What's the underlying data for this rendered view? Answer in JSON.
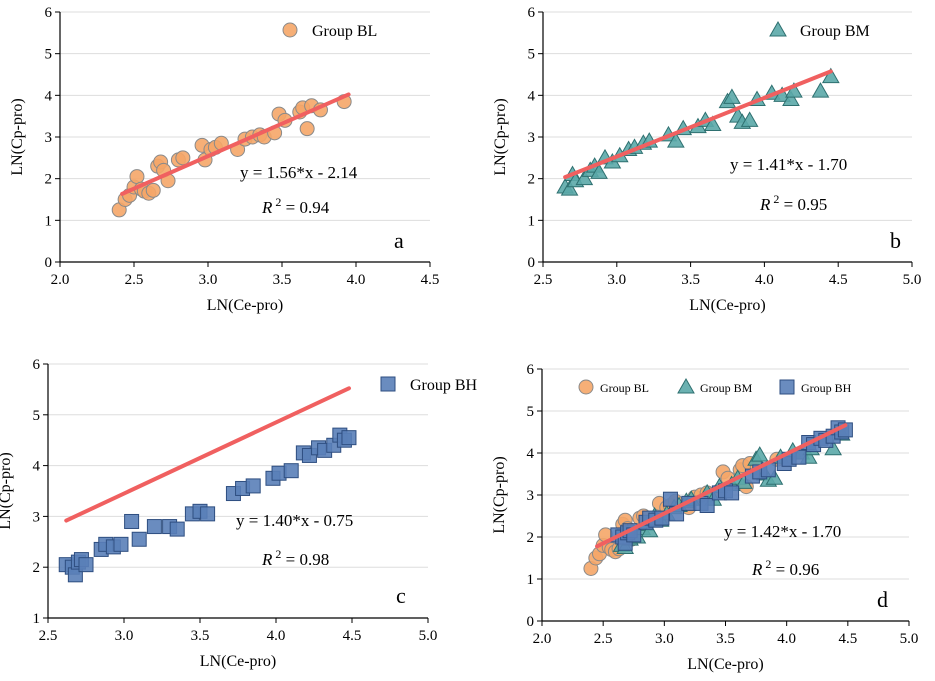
{
  "colors": {
    "bl_fill": "#F5A668",
    "bl_stroke": "#8A8A8A",
    "bm_fill": "#5BA8A8",
    "bm_stroke": "#2E7070",
    "bh_fill": "#5A7FB8",
    "bh_stroke": "#2E4E80",
    "fit_line": "#F06060",
    "grid": "#DDDDDD"
  },
  "chart_data": [
    {
      "id": "a",
      "type": "scatter",
      "panel_letter": "a",
      "xlabel": "LN(Ce-pro)",
      "ylabel": "LN(Cp-pro)",
      "xlim": [
        2.0,
        4.5
      ],
      "ylim": [
        0,
        6
      ],
      "xticks": [
        "2.0",
        "2.5",
        "3.0",
        "3.5",
        "4.0",
        "4.5"
      ],
      "yticks": [
        "0",
        "1",
        "2",
        "3",
        "4",
        "5",
        "6"
      ],
      "equation": "y = 1.56*x - 2.14",
      "r2_label": "R",
      "r2_sup": "2",
      "r2_value": " = 0.94",
      "fit": {
        "slope": 1.56,
        "intercept": -2.14,
        "x_range": [
          2.42,
          3.95
        ]
      },
      "legend": [
        {
          "name": "Group BL",
          "marker": "circle",
          "series": "bl"
        }
      ],
      "series": [
        {
          "name": "Group BL",
          "marker": "circle",
          "color_key": "bl",
          "points": [
            [
              2.4,
              1.25
            ],
            [
              2.44,
              1.5
            ],
            [
              2.47,
              1.6
            ],
            [
              2.5,
              1.8
            ],
            [
              2.52,
              2.05
            ],
            [
              2.55,
              1.75
            ],
            [
              2.57,
              1.7
            ],
            [
              2.6,
              1.65
            ],
            [
              2.63,
              1.72
            ],
            [
              2.66,
              2.3
            ],
            [
              2.68,
              2.4
            ],
            [
              2.7,
              2.2
            ],
            [
              2.73,
              1.95
            ],
            [
              2.8,
              2.45
            ],
            [
              2.83,
              2.5
            ],
            [
              2.96,
              2.8
            ],
            [
              2.98,
              2.45
            ],
            [
              3.02,
              2.7
            ],
            [
              3.05,
              2.75
            ],
            [
              3.09,
              2.85
            ],
            [
              3.2,
              2.7
            ],
            [
              3.25,
              2.95
            ],
            [
              3.3,
              3.0
            ],
            [
              3.35,
              3.05
            ],
            [
              3.38,
              3.0
            ],
            [
              3.45,
              3.1
            ],
            [
              3.48,
              3.55
            ],
            [
              3.52,
              3.4
            ],
            [
              3.62,
              3.6
            ],
            [
              3.64,
              3.7
            ],
            [
              3.67,
              3.2
            ],
            [
              3.7,
              3.75
            ],
            [
              3.76,
              3.65
            ],
            [
              3.92,
              3.85
            ]
          ]
        }
      ]
    },
    {
      "id": "b",
      "type": "scatter",
      "panel_letter": "b",
      "xlabel": "LN(Ce-pro)",
      "ylabel": "LN(Cp-pro)",
      "xlim": [
        2.5,
        5.0
      ],
      "ylim": [
        0,
        6
      ],
      "xticks": [
        "2.5",
        "3.0",
        "3.5",
        "4.0",
        "4.5",
        "5.0"
      ],
      "yticks": [
        "0",
        "1",
        "2",
        "3",
        "4",
        "5",
        "6"
      ],
      "equation": "y = 1.41*x - 1.70",
      "r2_label": "R",
      "r2_sup": "2",
      "r2_value": " = 0.95",
      "fit": {
        "slope": 1.41,
        "intercept": -1.7,
        "x_range": [
          2.65,
          4.45
        ]
      },
      "legend": [
        {
          "name": "Group BM",
          "marker": "triangle",
          "series": "bm"
        }
      ],
      "series": [
        {
          "name": "Group BM",
          "marker": "triangle",
          "color_key": "bm",
          "points": [
            [
              2.65,
              1.8
            ],
            [
              2.68,
              1.75
            ],
            [
              2.7,
              2.1
            ],
            [
              2.72,
              1.95
            ],
            [
              2.78,
              2.0
            ],
            [
              2.82,
              2.2
            ],
            [
              2.85,
              2.3
            ],
            [
              2.88,
              2.15
            ],
            [
              2.92,
              2.5
            ],
            [
              2.97,
              2.4
            ],
            [
              3.02,
              2.55
            ],
            [
              3.08,
              2.7
            ],
            [
              3.12,
              2.75
            ],
            [
              3.18,
              2.85
            ],
            [
              3.22,
              2.9
            ],
            [
              3.35,
              3.05
            ],
            [
              3.4,
              2.9
            ],
            [
              3.45,
              3.2
            ],
            [
              3.55,
              3.25
            ],
            [
              3.6,
              3.4
            ],
            [
              3.65,
              3.3
            ],
            [
              3.75,
              3.85
            ],
            [
              3.78,
              3.95
            ],
            [
              3.82,
              3.5
            ],
            [
              3.85,
              3.35
            ],
            [
              3.9,
              3.4
            ],
            [
              3.95,
              3.9
            ],
            [
              4.05,
              4.05
            ],
            [
              4.12,
              4.0
            ],
            [
              4.18,
              3.9
            ],
            [
              4.2,
              4.1
            ],
            [
              4.38,
              4.1
            ],
            [
              4.45,
              4.45
            ]
          ]
        }
      ]
    },
    {
      "id": "c",
      "type": "scatter",
      "panel_letter": "c",
      "xlabel": "LN(Ce-pro)",
      "ylabel": "LN(Cp-pro)",
      "xlim": [
        2.5,
        5.0
      ],
      "ylim": [
        1,
        6
      ],
      "xticks": [
        "2.5",
        "3.0",
        "3.5",
        "4.0",
        "4.5",
        "5.0"
      ],
      "yticks": [
        "1",
        "2",
        "3",
        "4",
        "5",
        "6"
      ],
      "equation": "y = 1.40*x - 0.75",
      "r2_label": "R",
      "r2_sup": "2",
      "r2_value": " = 0.98",
      "fit": {
        "slope": 1.4,
        "intercept": -0.75,
        "x_range": [
          2.62,
          4.48
        ]
      },
      "legend": [
        {
          "name": "Group BH",
          "marker": "square",
          "series": "bh"
        }
      ],
      "series": [
        {
          "name": "Group BH",
          "marker": "square",
          "color_key": "bh",
          "points": [
            [
              2.62,
              2.05
            ],
            [
              2.66,
              2.0
            ],
            [
              2.68,
              1.85
            ],
            [
              2.7,
              2.1
            ],
            [
              2.72,
              2.15
            ],
            [
              2.75,
              2.05
            ],
            [
              2.85,
              2.35
            ],
            [
              2.88,
              2.45
            ],
            [
              2.93,
              2.4
            ],
            [
              2.98,
              2.45
            ],
            [
              3.05,
              2.9
            ],
            [
              3.1,
              2.55
            ],
            [
              3.2,
              2.8
            ],
            [
              3.3,
              2.8
            ],
            [
              3.35,
              2.75
            ],
            [
              3.45,
              3.05
            ],
            [
              3.5,
              3.1
            ],
            [
              3.55,
              3.05
            ],
            [
              3.72,
              3.45
            ],
            [
              3.78,
              3.55
            ],
            [
              3.85,
              3.6
            ],
            [
              3.98,
              3.75
            ],
            [
              4.02,
              3.85
            ],
            [
              4.1,
              3.9
            ],
            [
              4.18,
              4.25
            ],
            [
              4.22,
              4.2
            ],
            [
              4.28,
              4.35
            ],
            [
              4.32,
              4.3
            ],
            [
              4.38,
              4.4
            ],
            [
              4.42,
              4.6
            ],
            [
              4.45,
              4.5
            ],
            [
              4.48,
              4.55
            ]
          ]
        }
      ]
    },
    {
      "id": "d",
      "type": "scatter",
      "panel_letter": "d",
      "xlabel": "LN(Ce-pro)",
      "ylabel": "LN(Cp-pro)",
      "xlim": [
        2.0,
        5.0
      ],
      "ylim": [
        0,
        6
      ],
      "xticks": [
        "2.0",
        "2.5",
        "3.0",
        "3.5",
        "4.0",
        "4.5",
        "5.0"
      ],
      "yticks": [
        "0",
        "1",
        "2",
        "3",
        "4",
        "5",
        "6"
      ],
      "equation": "y = 1.42*x - 1.70",
      "r2_label": "R",
      "r2_sup": "2",
      "r2_value": " = 0.96",
      "fit": {
        "slope": 1.42,
        "intercept": -1.7,
        "x_range": [
          2.45,
          4.48
        ]
      },
      "legend": [
        {
          "name": "Group BL",
          "marker": "circle",
          "series": "bl"
        },
        {
          "name": "Group BM",
          "marker": "triangle",
          "series": "bm"
        },
        {
          "name": "Group BH",
          "marker": "square",
          "series": "bh"
        }
      ],
      "series_refs": [
        "a",
        "b",
        "c"
      ]
    }
  ]
}
